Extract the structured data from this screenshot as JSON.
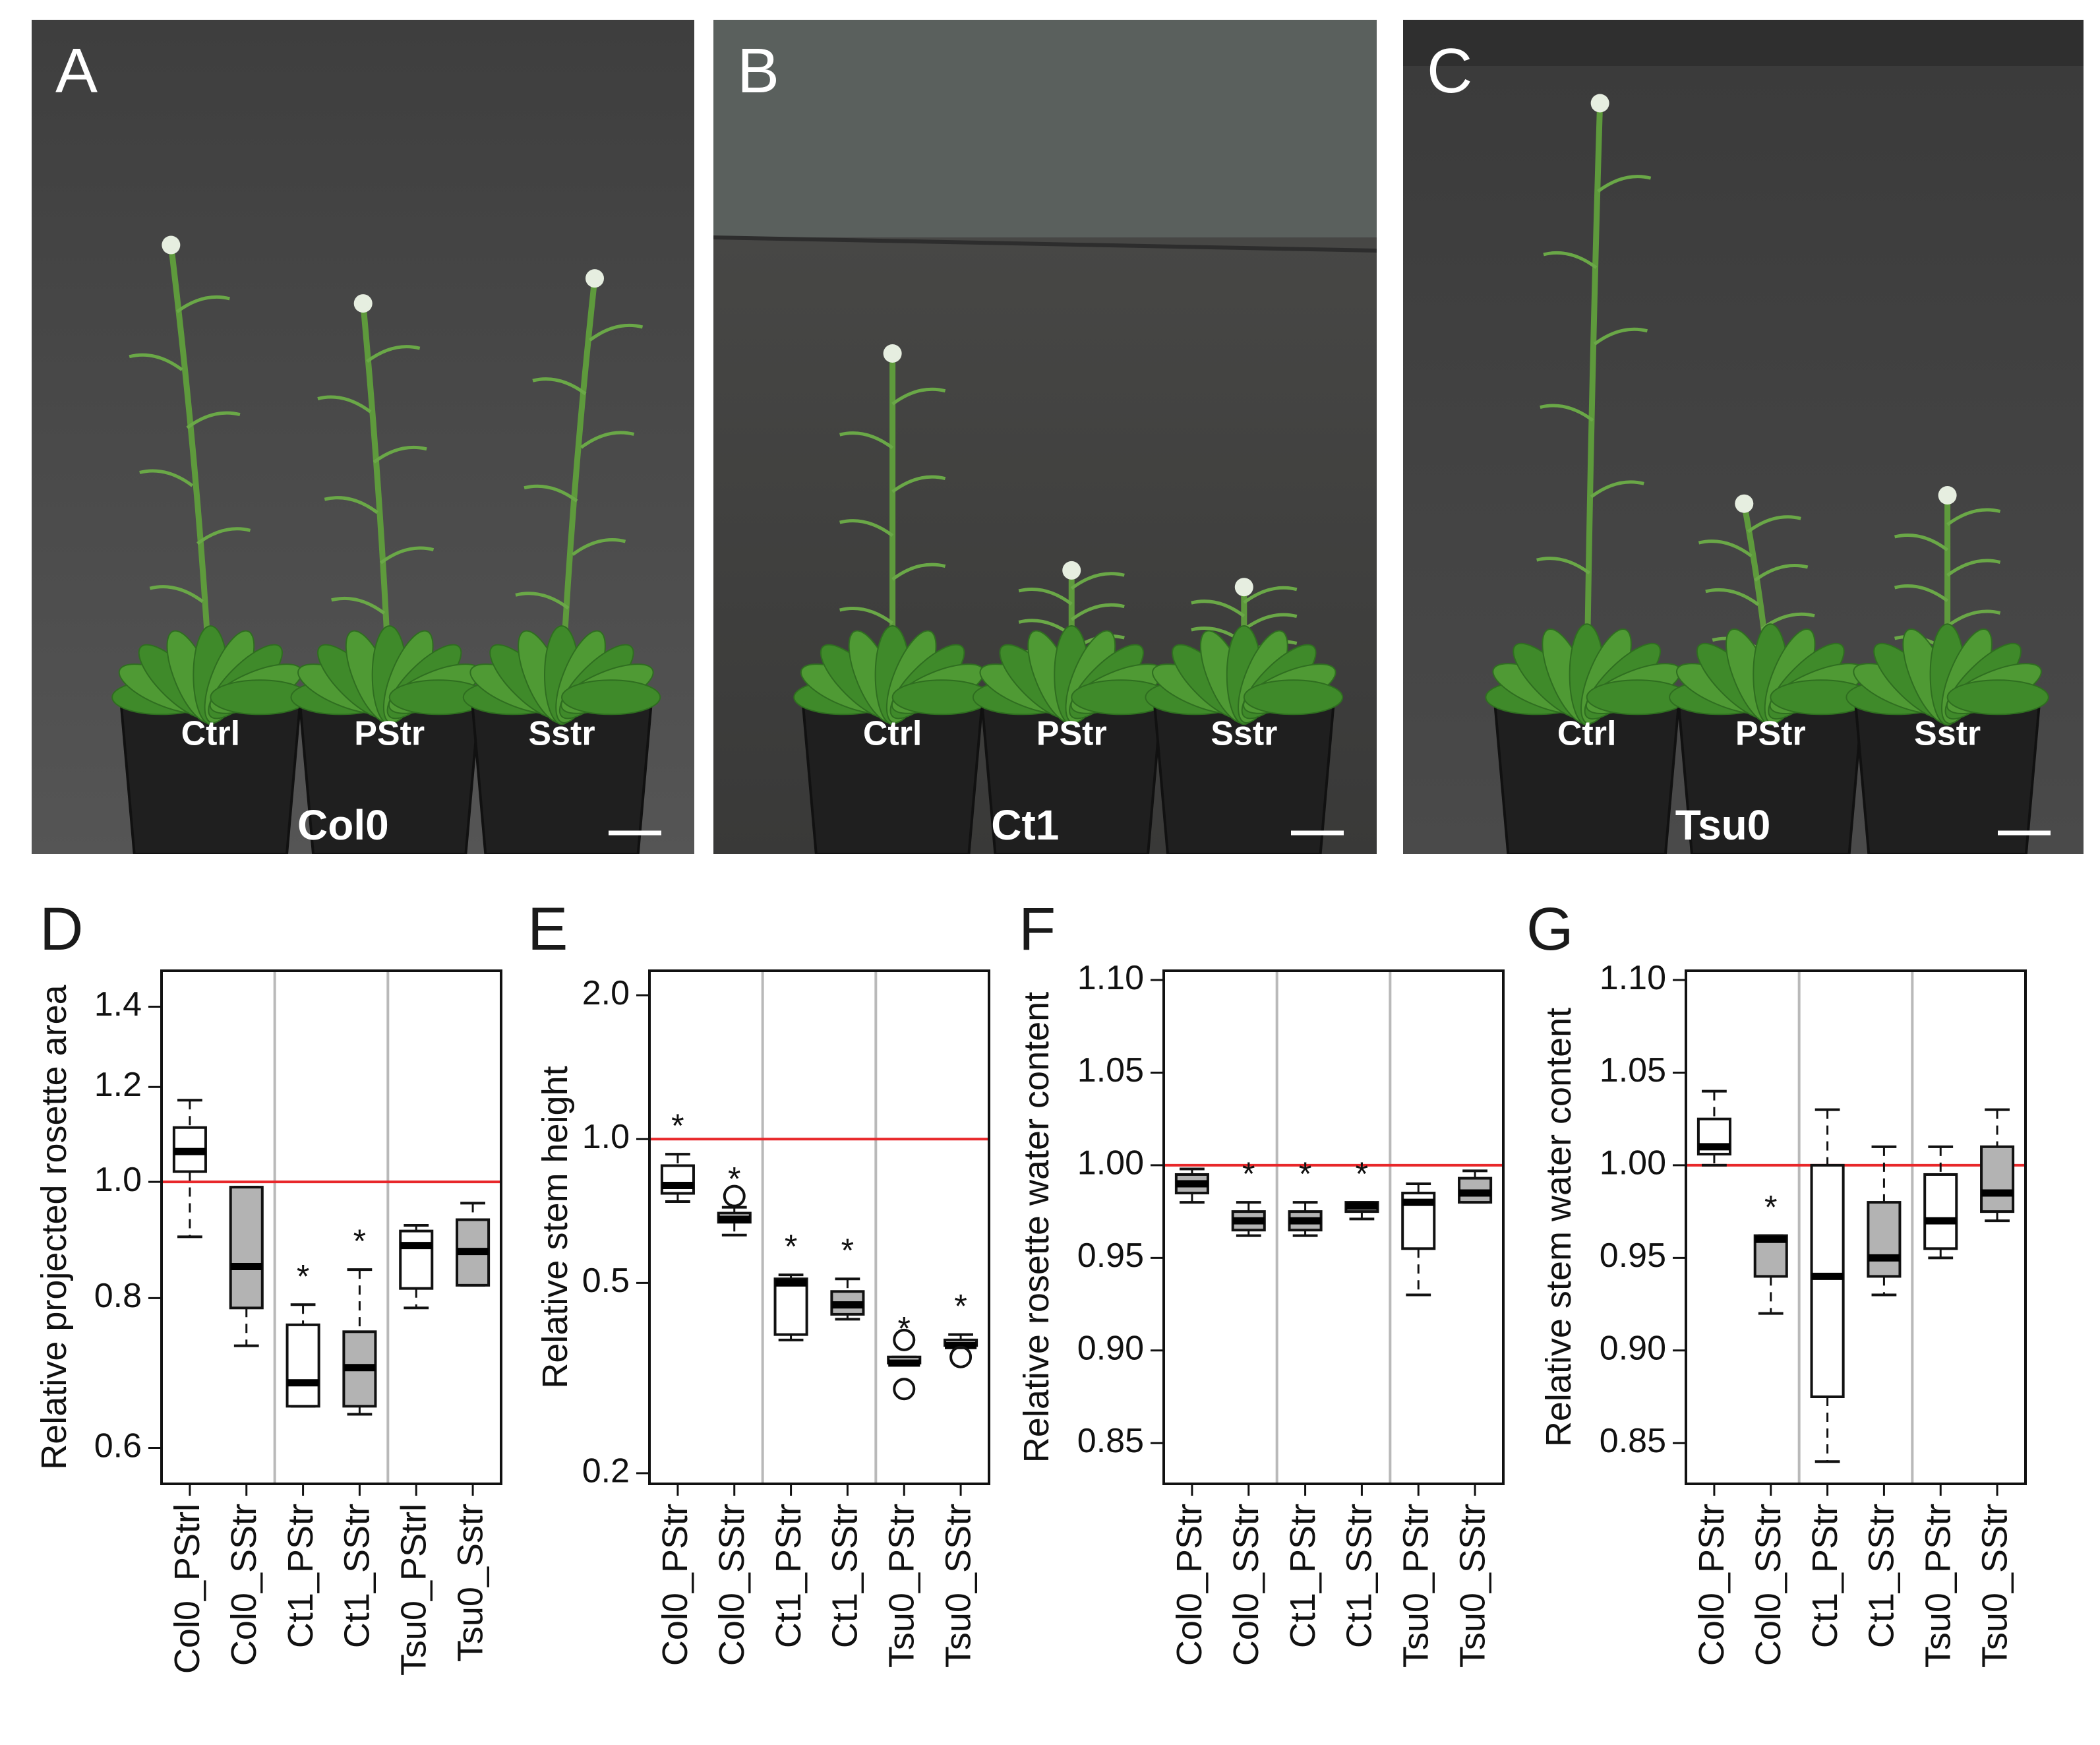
{
  "photos": [
    {
      "letter": "A",
      "genotype": "Col0",
      "pots": [
        "Ctrl",
        "PStr",
        "Sstr"
      ]
    },
    {
      "letter": "B",
      "genotype": "Ct1",
      "pots": [
        "Ctrl",
        "PStr",
        "Sstr"
      ]
    },
    {
      "letter": "C",
      "genotype": "Tsu0",
      "pots": [
        "Ctrl",
        "PStr",
        "Sstr"
      ]
    }
  ],
  "colors": {
    "ctrl_box": "#ffffff",
    "stress_box": "#b3b3b3",
    "reference_line": "#e8272a",
    "separator": "#b9b9b9"
  },
  "chart_data": [
    {
      "panel": "D",
      "type": "box",
      "ylabel": "Relative projected rosette area",
      "yscale": "log",
      "ylim": [
        0.56,
        1.5
      ],
      "yticks": [
        0.6,
        0.8,
        1.0,
        1.2,
        1.4
      ],
      "yticklabels": [
        "0.6",
        "0.8",
        "1.0",
        "1.2",
        "1.4"
      ],
      "reference": 1.0,
      "categories": [
        "Col0_PStrl",
        "Col0_SStr",
        "Ct1_PStr",
        "Ct1_SStr",
        "Tsu0_PStrl",
        "Tsu0_Sstr"
      ],
      "boxes": [
        {
          "fill": "white",
          "low": 0.9,
          "q1": 1.02,
          "median": 1.06,
          "q3": 1.11,
          "high": 1.17,
          "star": false,
          "outliers": []
        },
        {
          "fill": "gray",
          "low": 0.73,
          "q1": 0.785,
          "median": 0.85,
          "q3": 0.99,
          "high": 0.99,
          "star": false,
          "outliers": []
        },
        {
          "fill": "white",
          "low": 0.65,
          "q1": 0.65,
          "median": 0.68,
          "q3": 0.76,
          "high": 0.79,
          "star": true,
          "outliers": []
        },
        {
          "fill": "gray",
          "low": 0.64,
          "q1": 0.65,
          "median": 0.7,
          "q3": 0.75,
          "high": 0.845,
          "star": true,
          "outliers": []
        },
        {
          "fill": "white",
          "low": 0.785,
          "q1": 0.815,
          "median": 0.885,
          "q3": 0.91,
          "high": 0.92,
          "star": false,
          "outliers": []
        },
        {
          "fill": "gray",
          "low": 0.82,
          "q1": 0.82,
          "median": 0.875,
          "q3": 0.93,
          "high": 0.96,
          "star": false,
          "outliers": []
        }
      ]
    },
    {
      "panel": "E",
      "type": "box",
      "ylabel": "Relative stem height",
      "yscale": "log",
      "ylim": [
        0.19,
        2.25
      ],
      "yticks": [
        0.2,
        0.5,
        1.0,
        2.0
      ],
      "yticklabels": [
        "0.2",
        "0.5",
        "1.0",
        "2.0"
      ],
      "reference": 1.0,
      "categories": [
        "Col0_PStr",
        "Col0_SStr",
        "Ct1_PStr",
        "Ct1_SStr",
        "Tsu0_PStr",
        "Tsu0_SStr"
      ],
      "boxes": [
        {
          "fill": "white",
          "low": 0.74,
          "q1": 0.77,
          "median": 0.8,
          "q3": 0.88,
          "high": 0.93,
          "star": true,
          "outliers": []
        },
        {
          "fill": "white",
          "low": 0.63,
          "q1": 0.67,
          "median": 0.68,
          "q3": 0.7,
          "high": 0.72,
          "star": true,
          "outliers": [
            0.76
          ]
        },
        {
          "fill": "white",
          "low": 0.38,
          "q1": 0.39,
          "median": 0.5,
          "q3": 0.51,
          "high": 0.52,
          "star": true,
          "outliers": []
        },
        {
          "fill": "gray",
          "low": 0.42,
          "q1": 0.43,
          "median": 0.45,
          "q3": 0.48,
          "high": 0.51,
          "star": true,
          "outliers": []
        },
        {
          "fill": "white",
          "low": 0.34,
          "q1": 0.34,
          "median": 0.34,
          "q3": 0.35,
          "high": 0.35,
          "star": true,
          "outliers": [
            0.3,
            0.38
          ]
        },
        {
          "fill": "white",
          "low": 0.37,
          "q1": 0.37,
          "median": 0.37,
          "q3": 0.38,
          "high": 0.39,
          "star": true,
          "outliers": [
            0.35
          ]
        }
      ]
    },
    {
      "panel": "F",
      "type": "box",
      "ylabel": "Relative rosette water content",
      "yscale": "linear",
      "ylim": [
        0.828,
        1.105
      ],
      "yticks": [
        0.85,
        0.9,
        0.95,
        1.0,
        1.05,
        1.1
      ],
      "yticklabels": [
        "0.85",
        "0.90",
        "0.95",
        "1.00",
        "1.05",
        "1.10"
      ],
      "reference": 1.0,
      "categories": [
        "Col0_PStr",
        "Col0_SStr",
        "Ct1_PStr",
        "Ct1_SStr",
        "Tsu0_PStr",
        "Tsu0_SStr"
      ],
      "boxes": [
        {
          "fill": "gray",
          "low": 0.98,
          "q1": 0.985,
          "median": 0.99,
          "q3": 0.995,
          "high": 0.998,
          "star": false,
          "outliers": []
        },
        {
          "fill": "gray",
          "low": 0.962,
          "q1": 0.965,
          "median": 0.97,
          "q3": 0.975,
          "high": 0.98,
          "star": true,
          "outliers": []
        },
        {
          "fill": "gray",
          "low": 0.962,
          "q1": 0.965,
          "median": 0.97,
          "q3": 0.975,
          "high": 0.98,
          "star": true,
          "outliers": []
        },
        {
          "fill": "gray",
          "low": 0.971,
          "q1": 0.975,
          "median": 0.978,
          "q3": 0.98,
          "high": 0.98,
          "star": true,
          "outliers": []
        },
        {
          "fill": "white",
          "low": 0.93,
          "q1": 0.955,
          "median": 0.98,
          "q3": 0.985,
          "high": 0.99,
          "star": false,
          "outliers": []
        },
        {
          "fill": "gray",
          "low": 0.98,
          "q1": 0.98,
          "median": 0.985,
          "q3": 0.993,
          "high": 0.997,
          "star": false,
          "outliers": []
        }
      ]
    },
    {
      "panel": "G",
      "type": "box",
      "ylabel": "Relative stem water content",
      "yscale": "linear",
      "ylim": [
        0.828,
        1.105
      ],
      "yticks": [
        0.85,
        0.9,
        0.95,
        1.0,
        1.05,
        1.1
      ],
      "yticklabels": [
        "0.85",
        "0.90",
        "0.95",
        "1.00",
        "1.05",
        "1.10"
      ],
      "reference": 1.0,
      "categories": [
        "Col0_PStr",
        "Col0_SStr",
        "Ct1_PStr",
        "Ct1_SStr",
        "Tsu0_PStr",
        "Tsu0_SStr"
      ],
      "boxes": [
        {
          "fill": "white",
          "low": 1.0,
          "q1": 1.006,
          "median": 1.01,
          "q3": 1.025,
          "high": 1.04,
          "star": false,
          "outliers": []
        },
        {
          "fill": "gray",
          "low": 0.92,
          "q1": 0.94,
          "median": 0.96,
          "q3": 0.962,
          "high": 0.962,
          "star": true,
          "outliers": []
        },
        {
          "fill": "white",
          "low": 0.84,
          "q1": 0.875,
          "median": 0.94,
          "q3": 1.0,
          "high": 1.03,
          "star": false,
          "outliers": []
        },
        {
          "fill": "gray",
          "low": 0.93,
          "q1": 0.94,
          "median": 0.95,
          "q3": 0.98,
          "high": 1.01,
          "star": false,
          "outliers": []
        },
        {
          "fill": "white",
          "low": 0.95,
          "q1": 0.955,
          "median": 0.97,
          "q3": 0.995,
          "high": 1.01,
          "star": false,
          "outliers": []
        },
        {
          "fill": "gray",
          "low": 0.97,
          "q1": 0.975,
          "median": 0.985,
          "q3": 1.01,
          "high": 1.03,
          "star": false,
          "outliers": []
        }
      ]
    }
  ]
}
